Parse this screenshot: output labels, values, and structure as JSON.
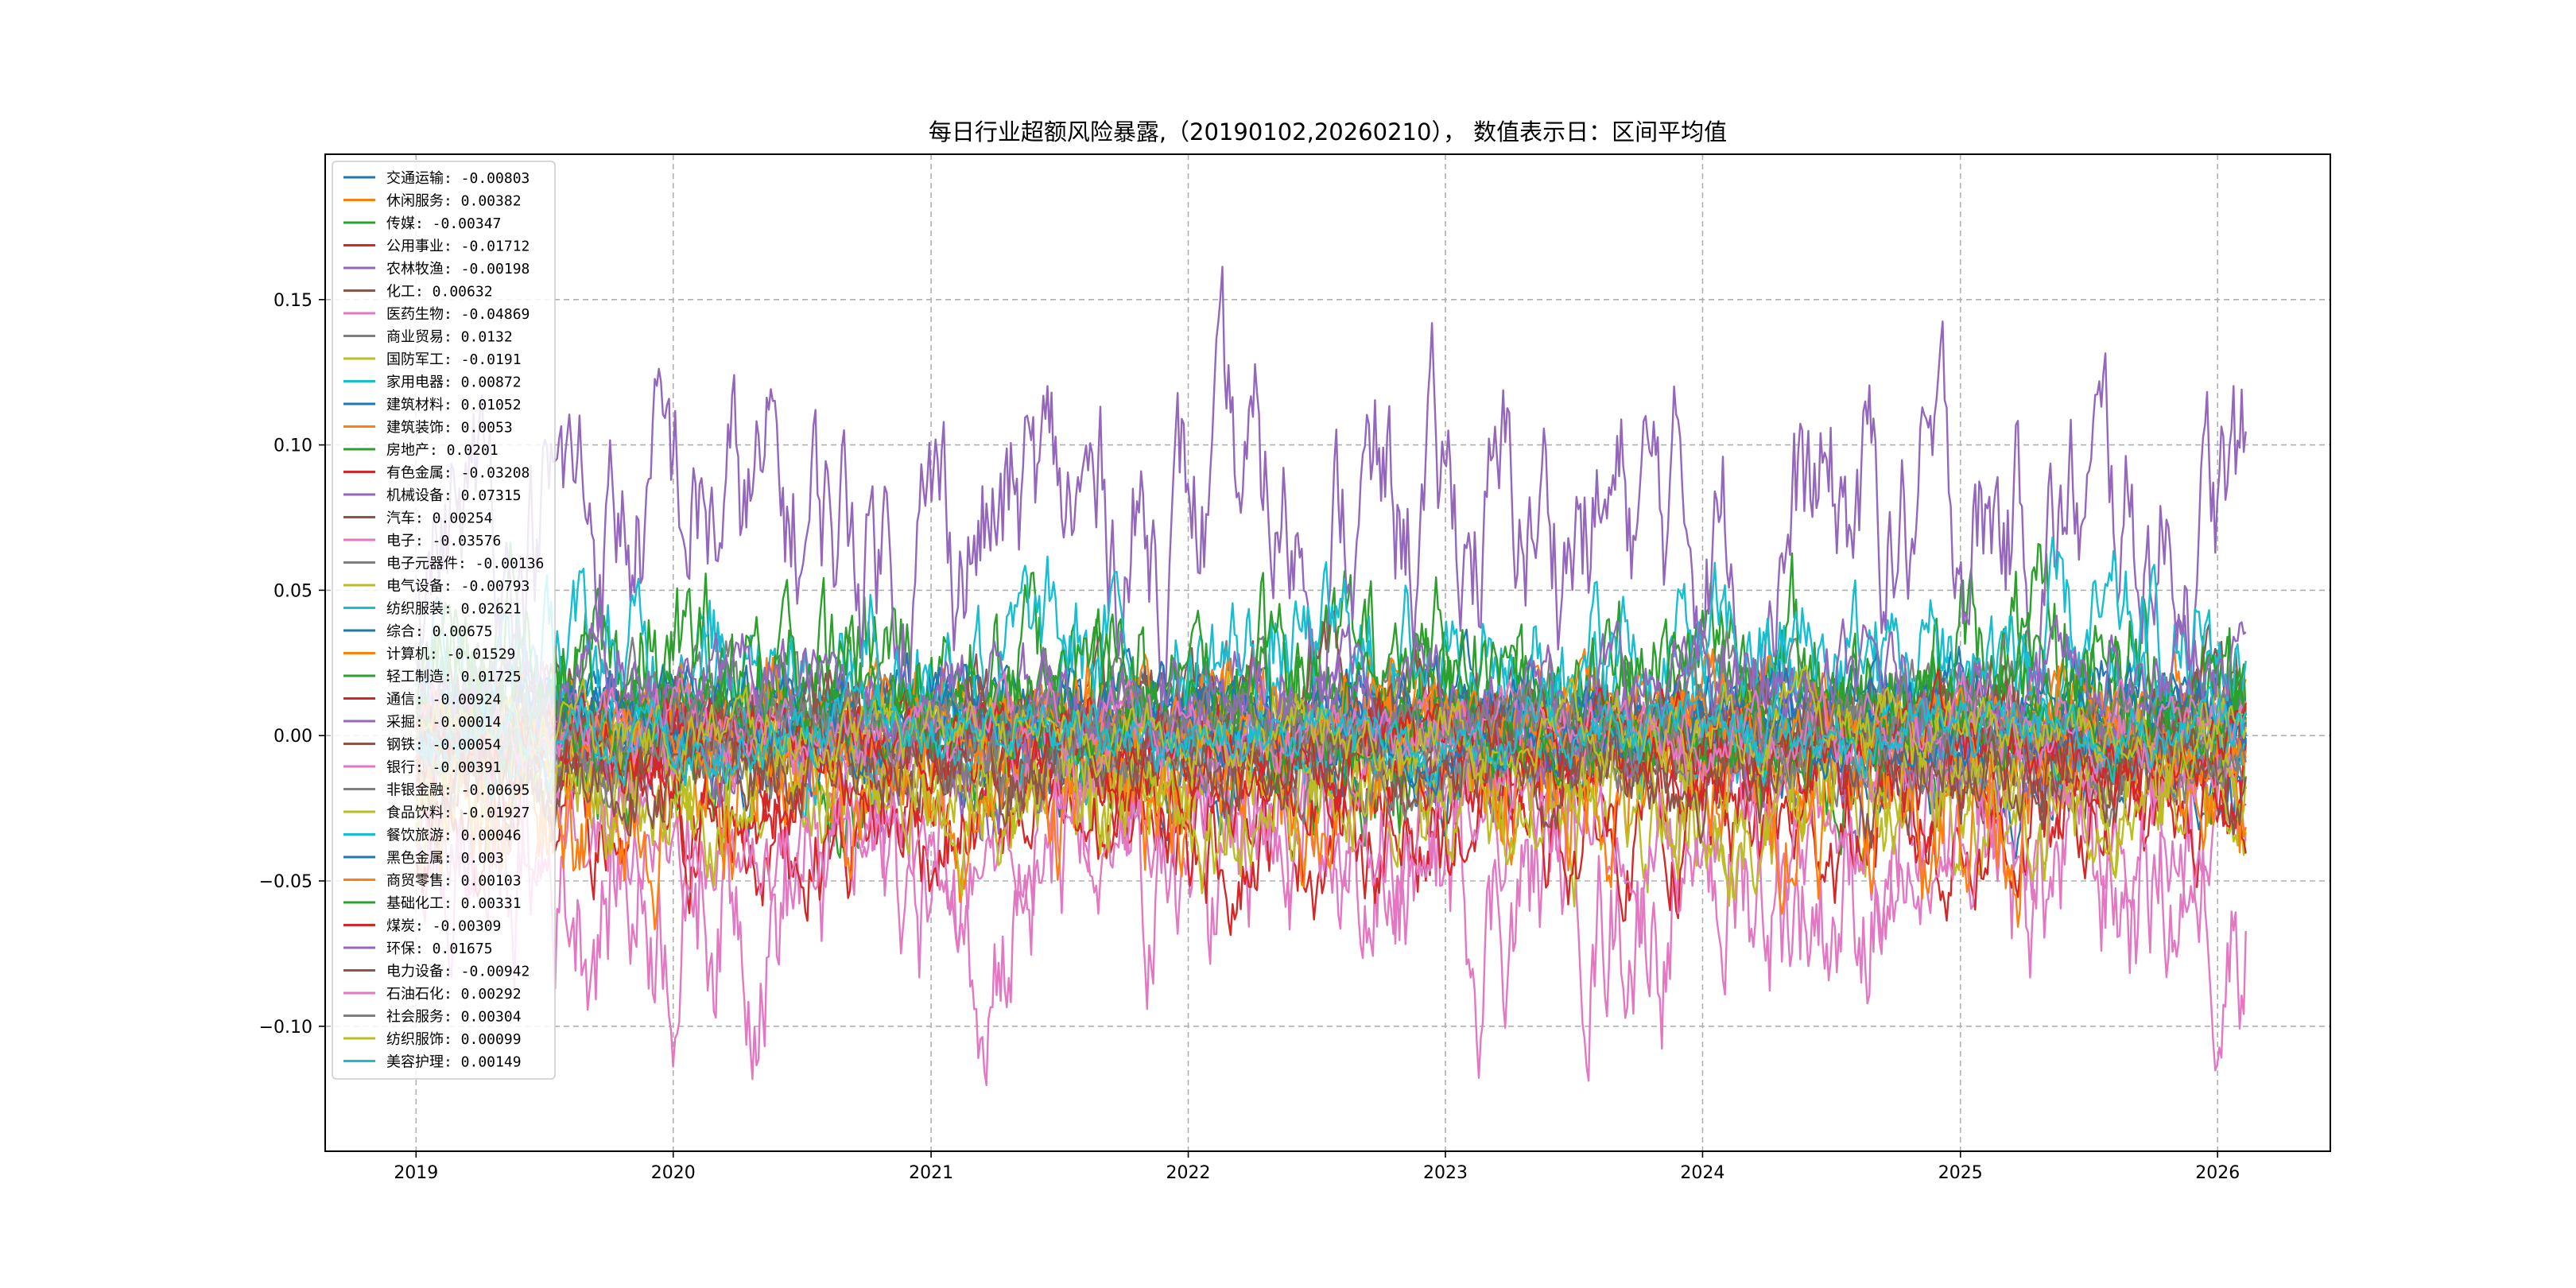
{
  "chart_data": {
    "type": "line",
    "title": "每日行业超额风险暴露,（20190102,20260210）， 数值表示日：区间平均值",
    "xlabel": "",
    "ylabel": "",
    "x_range": [
      "2018-08-25",
      "2026-06-10"
    ],
    "ylim": [
      -0.143,
      0.2
    ],
    "x_ticks": [
      {
        "date": "2019-01-01",
        "label": "2019"
      },
      {
        "date": "2020-01-01",
        "label": "2020"
      },
      {
        "date": "2021-01-01",
        "label": "2021"
      },
      {
        "date": "2022-01-01",
        "label": "2022"
      },
      {
        "date": "2023-01-01",
        "label": "2023"
      },
      {
        "date": "2024-01-01",
        "label": "2024"
      },
      {
        "date": "2025-01-01",
        "label": "2025"
      },
      {
        "date": "2026-01-01",
        "label": "2026"
      }
    ],
    "y_ticks": [
      {
        "value": 0.15,
        "label": "0.15"
      },
      {
        "value": 0.1,
        "label": "0.10"
      },
      {
        "value": 0.05,
        "label": "0.05"
      },
      {
        "value": 0.0,
        "label": "0.00"
      },
      {
        "value": -0.05,
        "label": "−0.05"
      },
      {
        "value": -0.1,
        "label": "−0.10"
      }
    ],
    "grid": true,
    "legend_position": "upper-left",
    "series": [
      {
        "name": "交通运输",
        "mean": -0.00803,
        "label": "交通运输: -0.00803",
        "color": "#1f77b4",
        "amp": 0.012
      },
      {
        "name": "休闲服务",
        "mean": 0.00382,
        "label": "休闲服务: 0.00382",
        "color": "#ff7f0e",
        "amp": 0.01
      },
      {
        "name": "传媒",
        "mean": -0.00347,
        "label": "传媒: -0.00347",
        "color": "#2ca02c",
        "amp": 0.018
      },
      {
        "name": "公用事业",
        "mean": -0.01712,
        "label": "公用事业: -0.01712",
        "color": "#d62728",
        "amp": 0.014
      },
      {
        "name": "农林牧渔",
        "mean": -0.00198,
        "label": "农林牧渔: -0.00198",
        "color": "#9467bd",
        "amp": 0.015
      },
      {
        "name": "化工",
        "mean": 0.00632,
        "label": "化工: 0.00632",
        "color": "#8c564b",
        "amp": 0.01
      },
      {
        "name": "医药生物",
        "mean": -0.04869,
        "label": "医药生物: -0.04869",
        "color": "#e377c2",
        "amp": 0.03
      },
      {
        "name": "商业贸易",
        "mean": 0.0132,
        "label": "商业贸易: 0.0132",
        "color": "#7f7f7f",
        "amp": 0.012
      },
      {
        "name": "国防军工",
        "mean": -0.0191,
        "label": "国防军工: -0.0191",
        "color": "#bcbd22",
        "amp": 0.018
      },
      {
        "name": "家用电器",
        "mean": 0.00872,
        "label": "家用电器: 0.00872",
        "color": "#17becf",
        "amp": 0.016
      },
      {
        "name": "建筑材料",
        "mean": 0.01052,
        "label": "建筑材料: 0.01052",
        "color": "#1f77b4",
        "amp": 0.01
      },
      {
        "name": "建筑装饰",
        "mean": 0.0053,
        "label": "建筑装饰: 0.0053",
        "color": "#ff7f0e",
        "amp": 0.012
      },
      {
        "name": "房地产",
        "mean": 0.0201,
        "label": "房地产: 0.0201",
        "color": "#2ca02c",
        "amp": 0.022
      },
      {
        "name": "有色金属",
        "mean": -0.03208,
        "label": "有色金属: -0.03208",
        "color": "#d62728",
        "amp": 0.016
      },
      {
        "name": "机械设备",
        "mean": 0.07315,
        "label": "机械设备: 0.07315",
        "color": "#9467bd",
        "amp": 0.03
      },
      {
        "name": "汽车",
        "mean": 0.00254,
        "label": "汽车: 0.00254",
        "color": "#8c564b",
        "amp": 0.014
      },
      {
        "name": "电子",
        "mean": -0.03576,
        "label": "电子: -0.03576",
        "color": "#e377c2",
        "amp": 0.016
      },
      {
        "name": "电子元器件",
        "mean": -0.00136,
        "label": "电子元器件: -0.00136",
        "color": "#7f7f7f",
        "amp": 0.01
      },
      {
        "name": "电气设备",
        "mean": -0.00793,
        "label": "电气设备: -0.00793",
        "color": "#bcbd22",
        "amp": 0.014
      },
      {
        "name": "纺织服装",
        "mean": 0.02621,
        "label": "纺织服装: 0.02621",
        "color": "#17becf",
        "amp": 0.018
      },
      {
        "name": "综合",
        "mean": 0.00675,
        "label": "综合: 0.00675",
        "color": "#1f77b4",
        "amp": 0.008
      },
      {
        "name": "计算机",
        "mean": -0.01529,
        "label": "计算机: -0.01529",
        "color": "#ff7f0e",
        "amp": 0.022
      },
      {
        "name": "轻工制造",
        "mean": 0.01725,
        "label": "轻工制造: 0.01725",
        "color": "#2ca02c",
        "amp": 0.014
      },
      {
        "name": "通信",
        "mean": -0.00924,
        "label": "通信: -0.00924",
        "color": "#d62728",
        "amp": 0.012
      },
      {
        "name": "采掘",
        "mean": -0.00014,
        "label": "采掘: -0.00014",
        "color": "#9467bd",
        "amp": 0.01
      },
      {
        "name": "钢铁",
        "mean": -0.00054,
        "label": "钢铁: -0.00054",
        "color": "#8c564b",
        "amp": 0.01
      },
      {
        "name": "银行",
        "mean": -0.00391,
        "label": "银行: -0.00391",
        "color": "#e377c2",
        "amp": 0.01
      },
      {
        "name": "非银金融",
        "mean": -0.00695,
        "label": "非银金融: -0.00695",
        "color": "#7f7f7f",
        "amp": 0.01
      },
      {
        "name": "食品饮料",
        "mean": -0.01927,
        "label": "食品饮料: -0.01927",
        "color": "#bcbd22",
        "amp": 0.016
      },
      {
        "name": "餐饮旅游",
        "mean": 0.00046,
        "label": "餐饮旅游: 0.00046",
        "color": "#17becf",
        "amp": 0.008
      },
      {
        "name": "黑色金属",
        "mean": 0.003,
        "label": "黑色金属: 0.003",
        "color": "#1f77b4",
        "amp": 0.008
      },
      {
        "name": "商贸零售",
        "mean": 0.00103,
        "label": "商贸零售: 0.00103",
        "color": "#ff7f0e",
        "amp": 0.008
      },
      {
        "name": "基础化工",
        "mean": 0.00331,
        "label": "基础化工: 0.00331",
        "color": "#2ca02c",
        "amp": 0.01
      },
      {
        "name": "煤炭",
        "mean": -0.00309,
        "label": "煤炭: -0.00309",
        "color": "#d62728",
        "amp": 0.01
      },
      {
        "name": "环保",
        "mean": 0.01675,
        "label": "环保: 0.01675",
        "color": "#9467bd",
        "amp": 0.012
      },
      {
        "name": "电力设备",
        "mean": -0.00942,
        "label": "电力设备: -0.00942",
        "color": "#8c564b",
        "amp": 0.012
      },
      {
        "name": "石油石化",
        "mean": 0.00292,
        "label": "石油石化: 0.00292",
        "color": "#e377c2",
        "amp": 0.008
      },
      {
        "name": "社会服务",
        "mean": 0.00304,
        "label": "社会服务: 0.00304",
        "color": "#7f7f7f",
        "amp": 0.008
      },
      {
        "name": "纺织服饰",
        "mean": 0.00099,
        "label": "纺织服饰: 0.00099",
        "color": "#bcbd22",
        "amp": 0.008
      },
      {
        "name": "美容护理",
        "mean": 0.00149,
        "label": "美容护理: 0.00149",
        "color": "#17becf",
        "amp": 0.008
      }
    ]
  }
}
